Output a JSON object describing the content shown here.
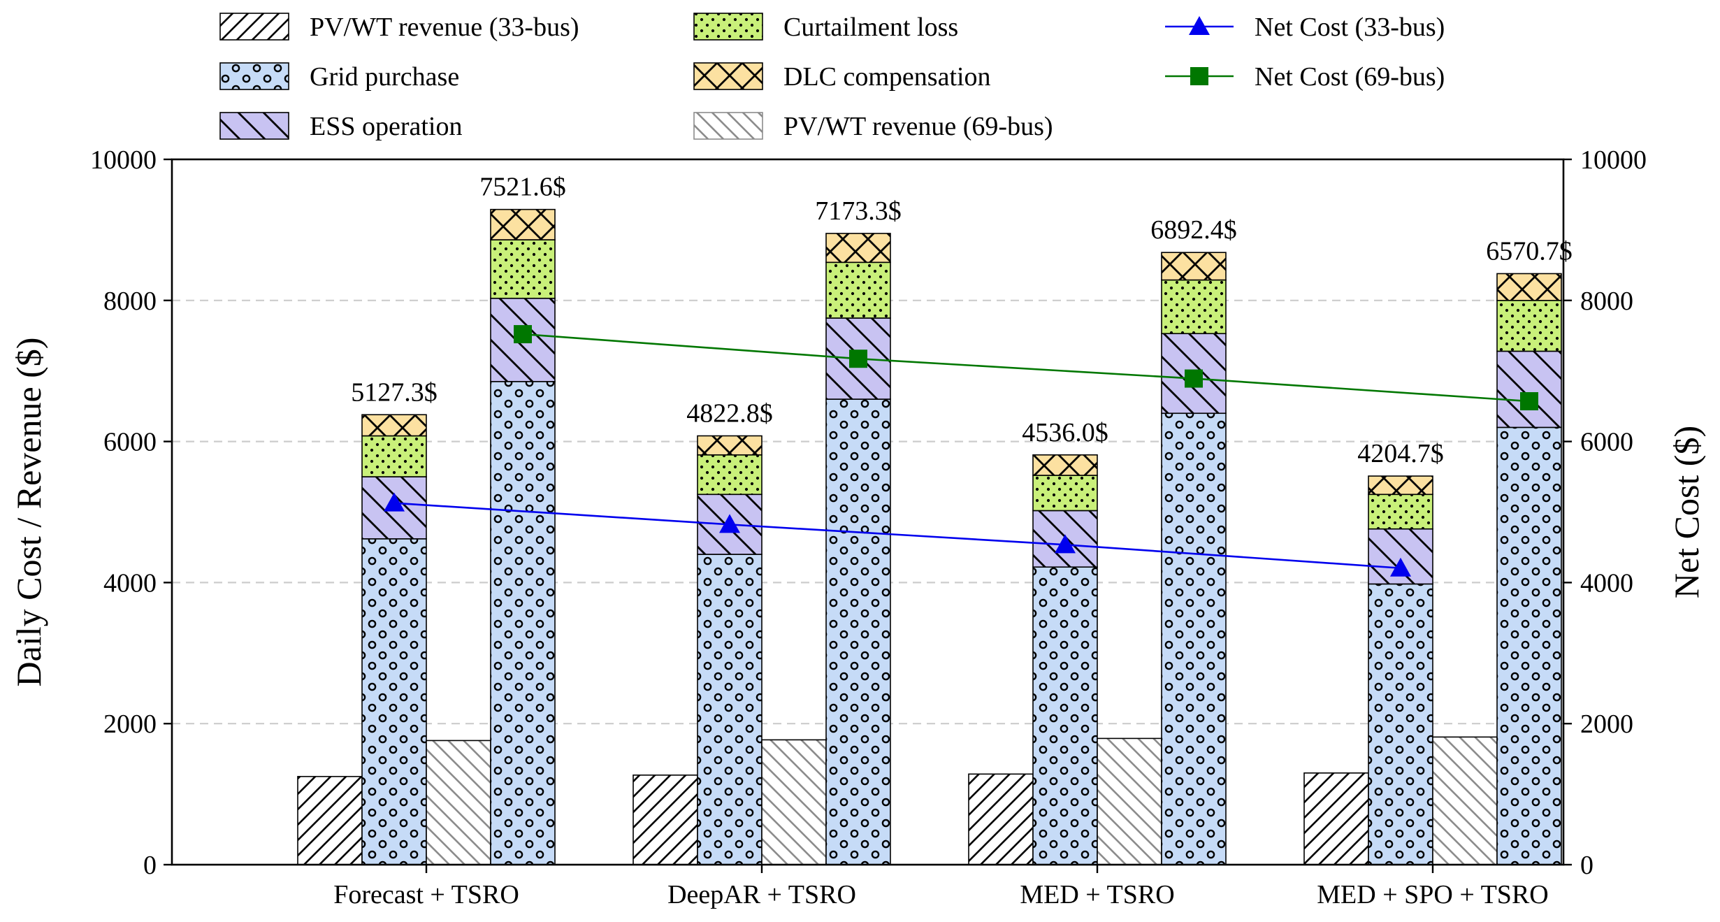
{
  "chart_data": {
    "type": "bar",
    "subtype": "grouped-stacked-bar-with-lines",
    "title": "",
    "categories": [
      "Forecast + TSRO",
      "DeepAR + TSRO",
      "MED + TSRO",
      "MED + SPO + TSRO"
    ],
    "ylabel_left": "Daily Cost / Revenue ($)",
    "ylabel_right": "Net Cost ($)",
    "ylim": [
      0,
      10000
    ],
    "yticks": [
      0,
      2000,
      4000,
      6000,
      8000,
      10000
    ],
    "grid": true,
    "legend_position": "top",
    "bars": [
      {
        "key": "rev33",
        "name": "PV/WT revenue (33-bus)",
        "fill": "#ffffff",
        "hatch": "diag-black",
        "values": [
          1250,
          1270,
          1285,
          1300
        ]
      },
      {
        "key": "stack33",
        "name": "33-bus cost stack",
        "segments": [
          {
            "name": "Grid purchase",
            "values": [
              4620,
              4400,
              4220,
              3980
            ]
          },
          {
            "name": "ESS operation",
            "values": [
              880,
              850,
              800,
              780
            ]
          },
          {
            "name": "Curtailment loss",
            "values": [
              580,
              560,
              500,
              490
            ]
          },
          {
            "name": "DLC compensation",
            "values": [
              300,
              270,
              290,
              260
            ]
          }
        ]
      },
      {
        "key": "rev69",
        "name": "PV/WT revenue (69-bus)",
        "fill": "#ffffff",
        "hatch": "diag-gray",
        "values": [
          1760,
          1770,
          1790,
          1810
        ]
      },
      {
        "key": "stack69",
        "name": "69-bus cost stack",
        "segments": [
          {
            "name": "Grid purchase",
            "values": [
              6850,
              6600,
              6400,
              6200
            ]
          },
          {
            "name": "ESS operation",
            "values": [
              1180,
              1150,
              1130,
              1080
            ]
          },
          {
            "name": "Curtailment loss",
            "values": [
              830,
              790,
              760,
              720
            ]
          },
          {
            "name": "DLC compensation",
            "values": [
              430,
              410,
              390,
              380
            ]
          }
        ]
      }
    ],
    "segment_styles": {
      "Grid purchase": {
        "fill": "#c6dbf7",
        "hatch": "circles"
      },
      "ESS operation": {
        "fill": "#c8c3f2",
        "hatch": "backdiag-black"
      },
      "Curtailment loss": {
        "fill": "#c9f07a",
        "hatch": "dots"
      },
      "DLC compensation": {
        "fill": "#fce1a1",
        "hatch": "cross"
      }
    },
    "lines": [
      {
        "name": "Net Cost (33-bus)",
        "color": "#0000ee",
        "marker": "triangle",
        "axis": "right",
        "values": [
          5127.3,
          4822.8,
          4536.0,
          4204.7
        ]
      },
      {
        "name": "Net Cost (69-bus)",
        "color": "#007700",
        "marker": "square",
        "axis": "right",
        "values": [
          7521.6,
          7173.3,
          6892.4,
          6570.7
        ]
      }
    ],
    "data_labels_33": [
      "5127.3$",
      "4822.8$",
      "4536.0$",
      "4204.7$"
    ],
    "data_labels_69": [
      "7521.6$",
      "7173.3$",
      "6892.4$",
      "6570.7$"
    ],
    "legend": [
      {
        "name": "PV/WT revenue (33-bus)",
        "kind": "patch",
        "fill": "#ffffff",
        "hatch": "diag-black"
      },
      {
        "name": "Curtailment loss",
        "kind": "patch",
        "fill": "#c9f07a",
        "hatch": "dots"
      },
      {
        "name": "Net Cost (33-bus)",
        "kind": "line",
        "color": "#0000ee",
        "marker": "triangle"
      },
      {
        "name": "Grid purchase",
        "kind": "patch",
        "fill": "#c6dbf7",
        "hatch": "circles"
      },
      {
        "name": "DLC compensation",
        "kind": "patch",
        "fill": "#fce1a1",
        "hatch": "cross"
      },
      {
        "name": "Net Cost (69-bus)",
        "kind": "line",
        "color": "#007700",
        "marker": "square"
      },
      {
        "name": "ESS operation",
        "kind": "patch",
        "fill": "#c8c3f2",
        "hatch": "backdiag-black"
      },
      {
        "name": "PV/WT revenue (69-bus)",
        "kind": "patch",
        "fill": "#ffffff",
        "hatch": "diag-gray"
      }
    ]
  }
}
